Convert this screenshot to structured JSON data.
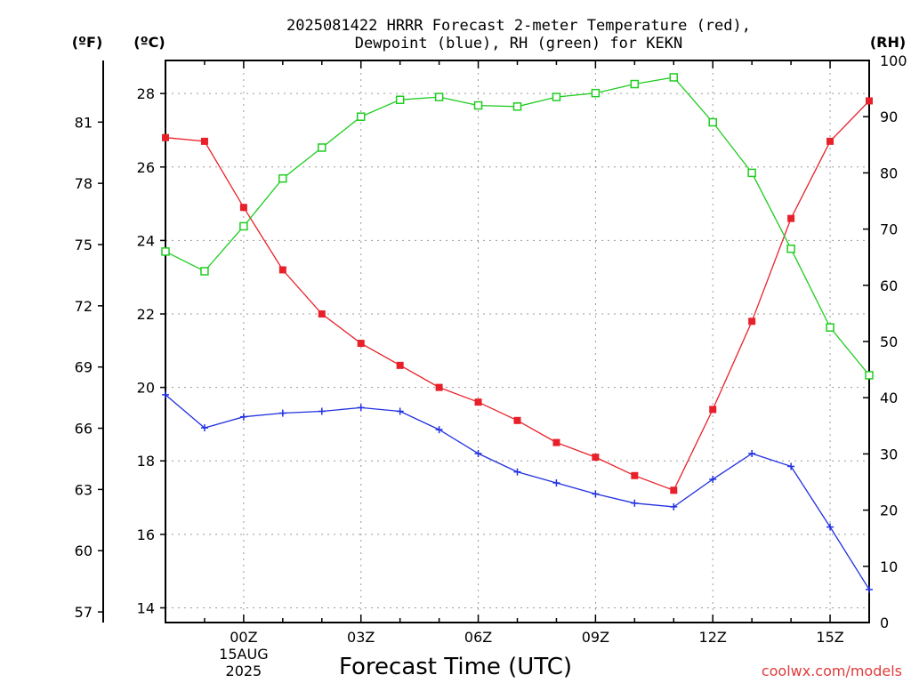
{
  "chart_data": {
    "type": "line",
    "title_line1": "2025081422 HRRR Forecast 2-meter Temperature (red),",
    "title_line2": "Dewpoint (blue), RH (green) for KEKN",
    "xlabel": "Forecast Time (UTC)",
    "credit": "coolwx.com/models",
    "unit_left_f": "(ºF)",
    "unit_left_c": "(ºC)",
    "unit_right": "(RH)",
    "x_hours_from_22z_14aug": [
      0,
      1,
      2,
      3,
      4,
      5,
      6,
      7,
      8,
      9,
      10,
      11,
      12,
      13,
      14,
      15,
      16,
      17,
      18
    ],
    "x_ticks": [
      {
        "hour": 2,
        "label": "00Z",
        "sub1": "15AUG",
        "sub2": "2025"
      },
      {
        "hour": 5,
        "label": "03Z"
      },
      {
        "hour": 8,
        "label": "06Z"
      },
      {
        "hour": 11,
        "label": "09Z"
      },
      {
        "hour": 14,
        "label": "12Z"
      },
      {
        "hour": 17,
        "label": "15Z"
      }
    ],
    "xlim": [
      0,
      18
    ],
    "ylim_c": [
      13.6,
      28.9
    ],
    "yticks_c": [
      14,
      16,
      18,
      20,
      22,
      24,
      26,
      28
    ],
    "yticks_f": [
      57,
      60,
      63,
      66,
      69,
      72,
      75,
      78,
      81
    ],
    "ylim_rh": [
      0,
      100
    ],
    "yticks_rh": [
      0,
      10,
      20,
      30,
      40,
      50,
      60,
      70,
      80,
      90,
      100
    ],
    "grid": true,
    "series": [
      {
        "color": "#e8202a",
        "axis": "c",
        "marker": "filled-square",
        "values": [
          26.8,
          26.7,
          24.9,
          23.2,
          22.0,
          21.2,
          20.6,
          20.0,
          19.6,
          19.1,
          18.5,
          18.1,
          17.6,
          17.2,
          19.4,
          21.8,
          24.6,
          26.7,
          27.8
        ]
      },
      {
        "color": "#2030e0",
        "axis": "c",
        "marker": "plus",
        "values": [
          19.8,
          18.9,
          19.2,
          19.3,
          19.35,
          19.45,
          19.35,
          18.85,
          18.2,
          17.7,
          17.4,
          17.1,
          16.85,
          16.75,
          17.5,
          18.2,
          17.85,
          16.2,
          14.5
        ]
      },
      {
        "color": "#20cc20",
        "axis": "rh",
        "marker": "open-square",
        "values": [
          66.0,
          62.5,
          70.5,
          79.0,
          84.5,
          90.0,
          93.0,
          93.5,
          92.0,
          91.8,
          93.5,
          94.2,
          95.8,
          97.0,
          89.0,
          80.0,
          66.5,
          52.5,
          44.0
        ]
      }
    ]
  }
}
